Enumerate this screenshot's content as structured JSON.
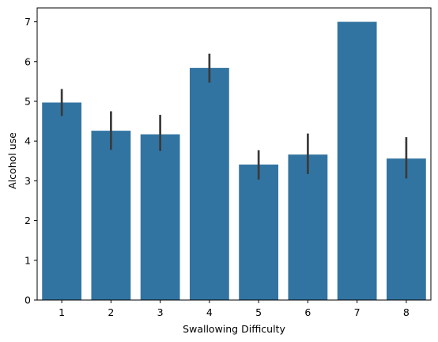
{
  "chart_data": {
    "type": "bar",
    "title": "",
    "xlabel": "Swallowing Difficulty",
    "ylabel": "Alcohol use",
    "categories": [
      "1",
      "2",
      "3",
      "4",
      "5",
      "6",
      "7",
      "8"
    ],
    "values": [
      4.97,
      4.26,
      4.17,
      5.84,
      3.41,
      3.66,
      7.0,
      3.56
    ],
    "error_bars": [
      [
        4.63,
        5.31
      ],
      [
        3.78,
        4.75
      ],
      [
        3.75,
        4.66
      ],
      [
        5.47,
        6.2
      ],
      [
        3.03,
        3.77
      ],
      [
        3.17,
        4.19
      ],
      [
        7.0,
        7.0
      ],
      [
        3.06,
        4.1
      ]
    ],
    "ylim": [
      0,
      7.35
    ],
    "yticks": [
      0,
      1,
      2,
      3,
      4,
      5,
      6,
      7
    ],
    "bar_color": "#3274a1",
    "error_color": "#3a3a3a",
    "grid": false,
    "legend": "none"
  }
}
